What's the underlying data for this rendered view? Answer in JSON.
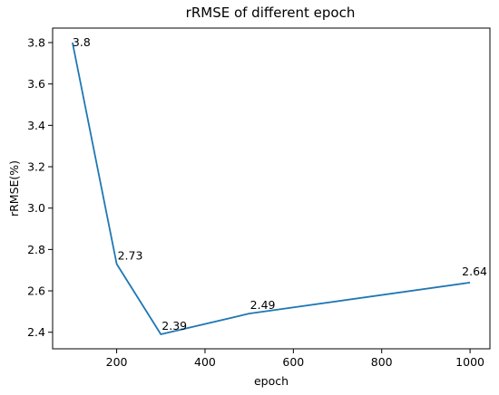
{
  "chart_data": {
    "type": "line",
    "title": "rRMSE of different epoch",
    "xlabel": "epoch",
    "ylabel": "rRMSE(%)",
    "x": [
      100,
      200,
      300,
      500,
      1000
    ],
    "series": [
      {
        "values": [
          3.8,
          2.73,
          2.39,
          2.49,
          2.64
        ],
        "color": "#1f77b4"
      }
    ],
    "data_labels": [
      "3.8",
      "2.73",
      "2.39",
      "2.49",
      "2.64"
    ],
    "xlim": [
      55,
      1045
    ],
    "ylim": [
      2.32,
      3.87
    ],
    "xticks": [
      200,
      400,
      600,
      800,
      1000
    ],
    "xtick_labels": [
      "200",
      "400",
      "600",
      "800",
      "1000"
    ],
    "yticks": [
      2.4,
      2.6,
      2.8,
      3.0,
      3.2,
      3.4,
      3.6,
      3.8
    ],
    "ytick_labels": [
      "2.4",
      "2.6",
      "2.8",
      "3.0",
      "3.2",
      "3.4",
      "3.6",
      "3.8"
    ],
    "grid": false,
    "legend": false
  }
}
